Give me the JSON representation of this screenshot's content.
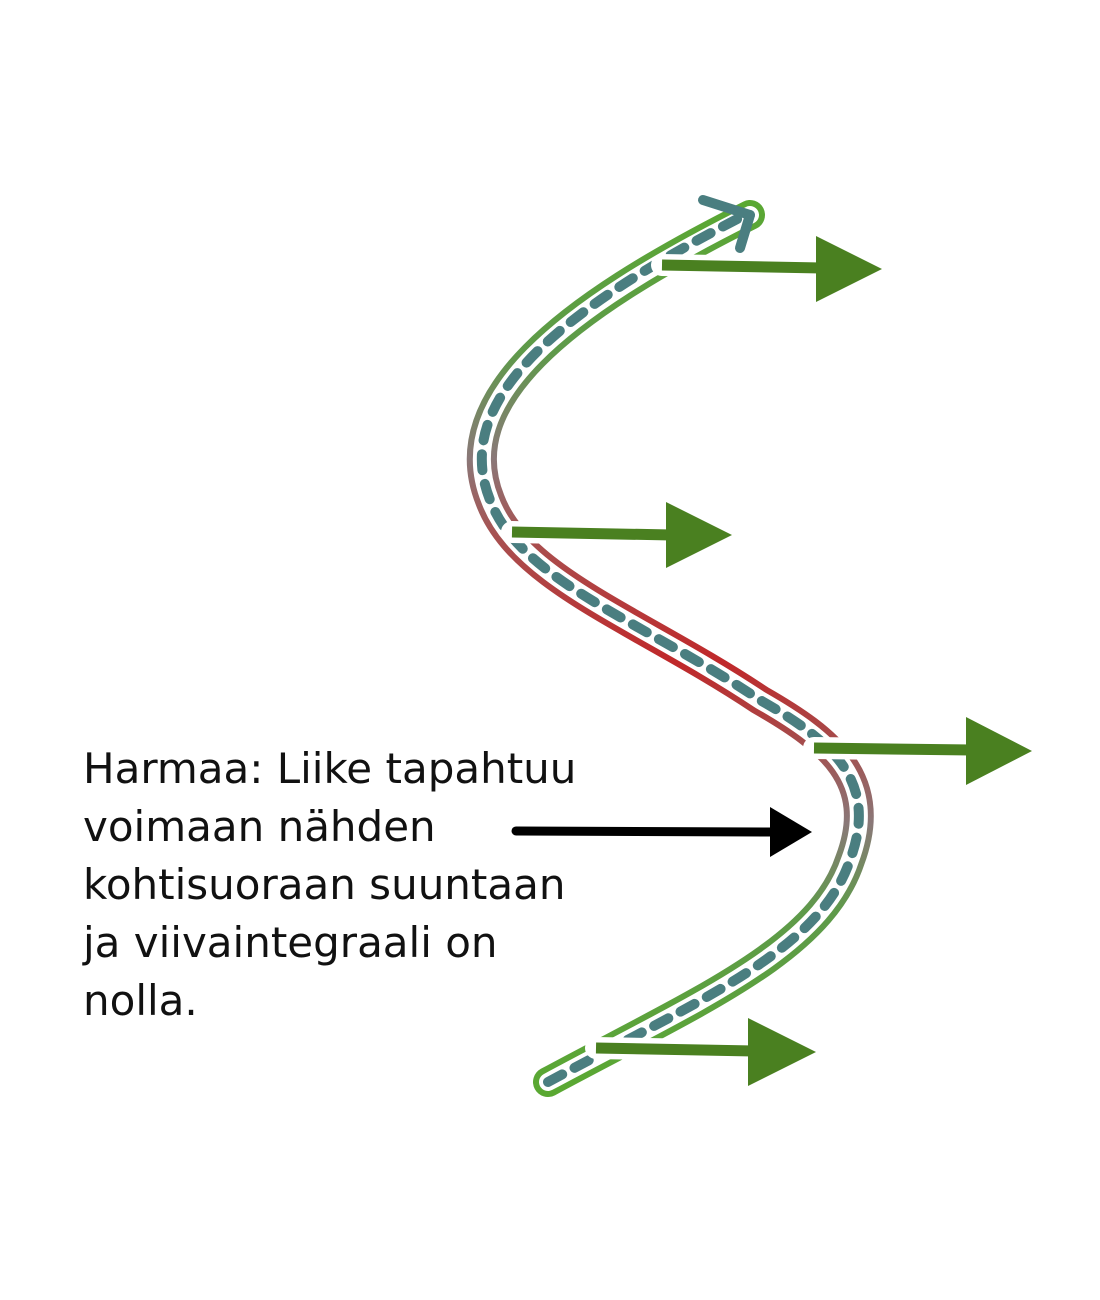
{
  "annotation": {
    "text": "Harmaa: Liike tapahtuu\nvoimaan nähden\nkohtisuoraan suuntaan\nja viivaintegraali on\nnolla."
  },
  "colors": {
    "path_green": "#5aa832",
    "path_red": "#c0282a",
    "path_gray": "#8a7878",
    "dash": "#4a7e80",
    "force_arrow": "#4a8020",
    "pointer_arrow": "#000000"
  },
  "force_arrows": {
    "count": 4,
    "direction": "right"
  }
}
